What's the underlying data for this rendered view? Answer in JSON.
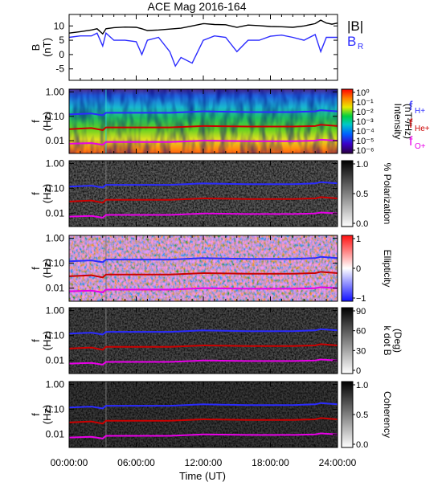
{
  "chart_data": {
    "title": "ACE Mag 2016-164",
    "xlabel": "Time (UT)",
    "x_ticks": [
      "00:00:00",
      "06:00:00",
      "12:00:00",
      "18:00:00",
      "24:00:00"
    ],
    "xlim": [
      "00:00:00",
      "24:00:00"
    ],
    "panels": [
      {
        "type": "line",
        "ylabel": "B",
        "yunit": "(nT)",
        "ylim": [
          -9,
          14
        ],
        "y_ticks": [
          10,
          5,
          0,
          -5
        ],
        "legend": [
          {
            "label": "|B|",
            "color": "#000000"
          },
          {
            "label": "B",
            "sub": "R",
            "color": "#2b2bff"
          }
        ],
        "series": [
          {
            "name": "|B|",
            "color": "#000000",
            "x_hours": [
              0,
              1,
              2,
              2.5,
              3,
              3.3,
              4,
              5,
              6,
              6.5,
              7,
              8,
              9,
              10,
              11,
              12,
              13,
              14,
              15,
              16,
              17,
              18,
              19,
              20,
              21,
              22,
              22.5,
              23,
              23.5,
              24
            ],
            "values": [
              7.5,
              8,
              8.6,
              9,
              7.2,
              9,
              9.4,
              9.6,
              9.5,
              9,
              8.4,
              8.6,
              8.9,
              9.2,
              10,
              10.8,
              10.5,
              10.4,
              9.5,
              10.3,
              10.1,
              9.8,
              9.7,
              9.5,
              10,
              10.8,
              12,
              11,
              10.6,
              11
            ]
          },
          {
            "name": "B_R",
            "color": "#2b2bff",
            "x_hours": [
              0,
              1,
              2,
              2.5,
              3,
              3.3,
              4,
              5,
              6,
              6.5,
              7,
              8,
              9,
              9.5,
              10,
              11,
              12,
              13,
              14,
              15,
              16,
              17,
              18,
              19,
              20,
              21,
              22,
              22.5,
              23,
              23.5,
              24
            ],
            "values": [
              6,
              6.5,
              6.5,
              7.5,
              3,
              7.5,
              5,
              5,
              4.5,
              0,
              5,
              6,
              1,
              -4,
              -1,
              -3,
              5,
              6.5,
              6,
              1,
              5,
              5,
              6.4,
              6.8,
              6,
              5,
              7,
              1,
              6,
              6,
              6
            ]
          }
        ]
      },
      {
        "type": "heatmap",
        "ylabel": "f",
        "yunit": "(Hz)",
        "ylim": [
          0.003,
          1.3
        ],
        "y_ticks": [
          "1.00",
          "0.10",
          "0.01"
        ],
        "colorbar": {
          "label": "Intensity",
          "unit": "(nT²/Hz)",
          "ticks": [
            "10⁰",
            "10⁻¹",
            "10⁻²",
            "10⁻³",
            "10⁻⁴",
            "10⁻⁵",
            "10⁻⁶"
          ]
        },
        "legend": [
          {
            "label": "f",
            "sub": "H+",
            "color": "#2b2bff"
          },
          {
            "label": "f",
            "sub": "He+",
            "color": "#cc0000"
          },
          {
            "label": "f",
            "sub": "O+",
            "color": "#e800e8"
          }
        ]
      },
      {
        "type": "heatmap",
        "ylabel": "f",
        "yunit": "(Hz)",
        "ylim": [
          0.003,
          1.3
        ],
        "y_ticks": [
          "1.00",
          "0.10",
          "0.01"
        ],
        "colorbar": {
          "label": "% Polarization",
          "unit": "",
          "ticks": [
            "1.0",
            "0.5",
            "0.0"
          ]
        }
      },
      {
        "type": "heatmap",
        "ylabel": "f",
        "yunit": "(Hz)",
        "ylim": [
          0.003,
          1.3
        ],
        "y_ticks": [
          "1.00",
          "0.10",
          "0.01"
        ],
        "colorbar": {
          "label": "Ellipticity",
          "unit": "",
          "ticks": [
            "1",
            "0",
            "−1"
          ]
        }
      },
      {
        "type": "heatmap",
        "ylabel": "f",
        "yunit": "(Hz)",
        "ylim": [
          0.003,
          1.3
        ],
        "y_ticks": [
          "1.00",
          "0.10",
          "0.01"
        ],
        "colorbar": {
          "label": "k dot B",
          "unit": "(Deg)",
          "ticks": [
            "90",
            "60",
            "30",
            "0"
          ]
        }
      },
      {
        "type": "heatmap",
        "ylabel": "f",
        "yunit": "(Hz)",
        "ylim": [
          0.003,
          1.3
        ],
        "y_ticks": [
          "1.00",
          "0.10",
          "0.01"
        ],
        "colorbar": {
          "label": "Coherency",
          "unit": "",
          "ticks": [
            "1.0",
            "0.5",
            "0.0"
          ]
        }
      }
    ],
    "cyclotron_lines": [
      {
        "name": "f_H+",
        "color": "#2b2bff",
        "x_hours": [
          0,
          2,
          3,
          3.3,
          6,
          9,
          12,
          16,
          20,
          22,
          22.5,
          24
        ],
        "values": [
          0.12,
          0.13,
          0.11,
          0.14,
          0.14,
          0.14,
          0.16,
          0.15,
          0.15,
          0.16,
          0.18,
          0.16
        ]
      },
      {
        "name": "f_He+",
        "color": "#cc0000",
        "x_hours": [
          0,
          2,
          3,
          3.3,
          6,
          9,
          12,
          16,
          20,
          22,
          22.5,
          24
        ],
        "values": [
          0.03,
          0.033,
          0.027,
          0.035,
          0.035,
          0.035,
          0.04,
          0.038,
          0.038,
          0.04,
          0.045,
          0.04
        ]
      },
      {
        "name": "f_O+",
        "color": "#e800e8",
        "x_hours": [
          0,
          2,
          3,
          3.3,
          6,
          9,
          12,
          16,
          20,
          22,
          22.5,
          24
        ],
        "values": [
          0.0075,
          0.008,
          0.0068,
          0.0088,
          0.0088,
          0.0088,
          0.01,
          0.0095,
          0.0095,
          0.01,
          0.011,
          0.01
        ]
      }
    ]
  }
}
